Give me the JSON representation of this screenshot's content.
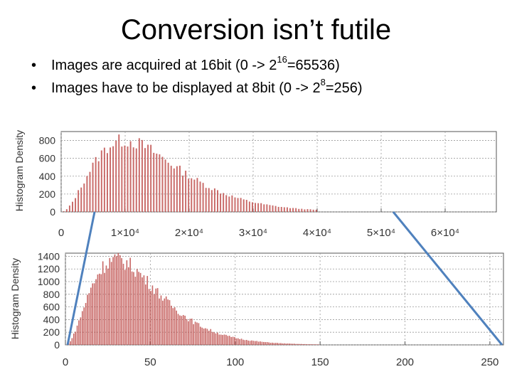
{
  "slide": {
    "title": "Conversion isn’t futile",
    "bullets": [
      {
        "text": "Images are acquired at 16bit (0 -> 2",
        "sup": "16",
        "tail": "=65536)"
      },
      {
        "text": "Images have to be displayed at 8bit  (0 -> 2",
        "sup": "8",
        "tail": "=256)"
      }
    ]
  },
  "colors": {
    "bars": "#c0504d",
    "connector": "#4f81bd",
    "axis": "#555555",
    "grid": "#999999"
  },
  "chart_data": [
    {
      "type": "bar",
      "title": "",
      "xlabel": "",
      "ylabel": "Histogram Density",
      "xlim": [
        0,
        68000
      ],
      "ylim": [
        0,
        900
      ],
      "xticks": [
        0,
        10000,
        20000,
        30000,
        40000,
        50000,
        60000
      ],
      "xtick_labels": [
        "0",
        "1×10⁴",
        "2×10⁴",
        "3×10⁴",
        "4×10⁴",
        "5×10⁴",
        "6×10⁴"
      ],
      "yticks": [
        0,
        200,
        400,
        600,
        800
      ],
      "ytick_labels": [
        "0",
        "200",
        "400",
        "600",
        "800"
      ],
      "grid": true,
      "distribution": {
        "shape": "gamma",
        "peak_x": 10000,
        "peak_y": 800,
        "end_x": 40000
      }
    },
    {
      "type": "bar",
      "title": "",
      "xlabel": "",
      "ylabel": "Histogram Density",
      "xlim": [
        0,
        258
      ],
      "ylim": [
        0,
        1450
      ],
      "xticks": [
        0,
        50,
        100,
        150,
        200,
        250
      ],
      "xtick_labels": [
        "0",
        "50",
        "100",
        "150",
        "200",
        "250"
      ],
      "yticks": [
        0,
        200,
        400,
        600,
        800,
        1000,
        1200,
        1400
      ],
      "ytick_labels": [
        "0",
        "200",
        "400",
        "600",
        "800",
        "1000",
        "1200",
        "1400"
      ],
      "grid": true,
      "distribution": {
        "shape": "gamma",
        "peak_x": 30,
        "peak_y": 1350,
        "end_x": 160
      }
    }
  ],
  "connectors": [
    {
      "from": "top-chart-x-min",
      "to": "bottom-chart-x-min"
    },
    {
      "from": "top-chart-x-max",
      "to": "bottom-chart-x-max"
    }
  ]
}
